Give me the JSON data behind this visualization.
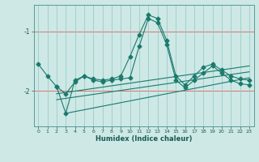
{
  "xlabel": "Humidex (Indice chaleur)",
  "bg_color": "#cde8e5",
  "line_color": "#1a7a6e",
  "grid_color_h": "#e07070",
  "grid_color_v": "#90c8c4",
  "xlim": [
    -0.5,
    23.5
  ],
  "ylim": [
    -2.6,
    -0.55
  ],
  "yticks": [
    -2,
    -1
  ],
  "xticks": [
    0,
    1,
    2,
    3,
    4,
    5,
    6,
    7,
    8,
    9,
    10,
    11,
    12,
    13,
    14,
    15,
    16,
    17,
    18,
    19,
    20,
    21,
    22,
    23
  ],
  "line1_x": [
    0,
    1,
    2,
    3,
    4,
    5,
    6,
    7,
    8,
    9,
    10,
    11,
    12,
    13,
    14,
    15,
    16,
    17,
    18,
    19,
    20,
    21,
    22,
    23
  ],
  "line1_y": [
    -1.55,
    -1.75,
    -1.93,
    -2.05,
    -1.85,
    -1.75,
    -1.8,
    -1.82,
    -1.8,
    -1.75,
    -1.42,
    -1.05,
    -0.72,
    -0.78,
    -1.15,
    -1.75,
    -1.9,
    -1.75,
    -1.6,
    -1.55,
    -1.65,
    -1.75,
    -1.8,
    -1.82
  ],
  "line2_x": [
    2,
    3,
    4,
    5,
    6,
    7,
    8,
    9,
    10,
    11,
    12,
    13,
    14,
    15,
    16,
    17,
    18,
    19,
    20,
    21,
    22,
    23
  ],
  "line2_y": [
    -1.93,
    -2.38,
    -1.82,
    -1.75,
    -1.82,
    -1.85,
    -1.82,
    -1.8,
    -1.78,
    -1.25,
    -0.78,
    -0.85,
    -1.22,
    -1.82,
    -1.95,
    -1.82,
    -1.7,
    -1.58,
    -1.7,
    -1.82,
    -1.88,
    -1.9
  ],
  "line3_x": [
    2,
    23
  ],
  "line3_y": [
    -2.05,
    -1.58
  ],
  "line4_x": [
    2,
    23
  ],
  "line4_y": [
    -2.15,
    -1.68
  ],
  "line5_x": [
    3,
    23
  ],
  "line5_y": [
    -2.38,
    -1.78
  ]
}
